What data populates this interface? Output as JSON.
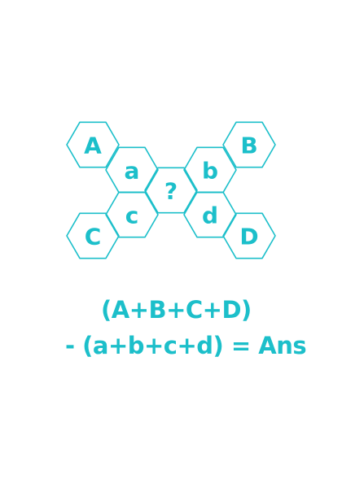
{
  "colors": {
    "accent": "#1cbfca",
    "background": "#ffffff"
  },
  "hexagons": [
    {
      "id": "A",
      "label": "A"
    },
    {
      "id": "B",
      "label": "B"
    },
    {
      "id": "a",
      "label": "a"
    },
    {
      "id": "b",
      "label": "b"
    },
    {
      "id": "q",
      "label": "?"
    },
    {
      "id": "c",
      "label": "c"
    },
    {
      "id": "d",
      "label": "d"
    },
    {
      "id": "C",
      "label": "C"
    },
    {
      "id": "D",
      "label": "D"
    }
  ],
  "formula": {
    "line1": "(A+B+C+D)",
    "line2": "- (a+b+c+d) = Ans"
  }
}
